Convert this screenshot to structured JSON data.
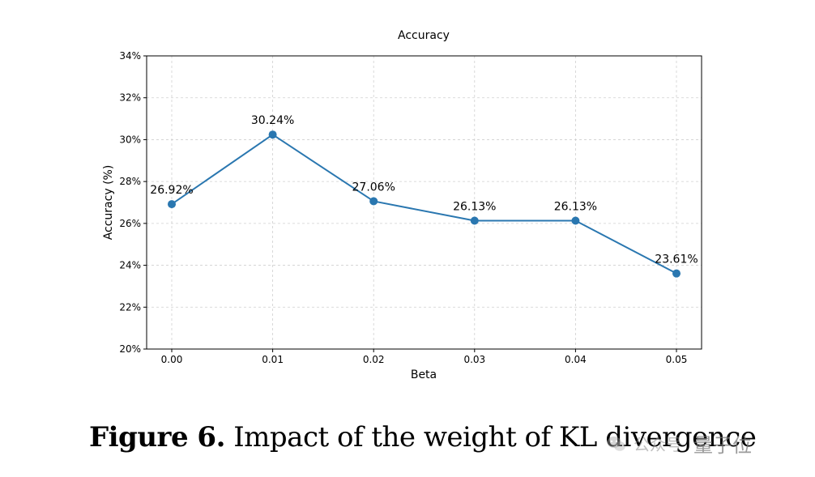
{
  "chart_data": {
    "type": "line",
    "title": "Accuracy",
    "xlabel": "Beta",
    "ylabel": "Accuracy (%)",
    "x": [
      0.0,
      0.01,
      0.02,
      0.03,
      0.04,
      0.05
    ],
    "x_tick_labels": [
      "0.00",
      "0.01",
      "0.02",
      "0.03",
      "0.04",
      "0.05"
    ],
    "series": [
      {
        "name": "Accuracy",
        "values": [
          26.92,
          30.24,
          27.06,
          26.13,
          26.13,
          23.61
        ],
        "data_labels": [
          "26.92%",
          "30.24%",
          "27.06%",
          "26.13%",
          "26.13%",
          "23.61%"
        ],
        "color": "#2a77b0"
      }
    ],
    "ylim": [
      20,
      34
    ],
    "y_ticks": [
      20,
      22,
      24,
      26,
      28,
      30,
      32,
      34
    ],
    "y_tick_labels": [
      "20%",
      "22%",
      "24%",
      "26%",
      "28%",
      "30%",
      "32%",
      "34%"
    ],
    "grid": true
  },
  "caption": {
    "figure_number": "Figure 6.",
    "text": "Impact of the weight of KL divergence"
  },
  "watermark": {
    "label": "公众号",
    "brand": "量子位"
  }
}
